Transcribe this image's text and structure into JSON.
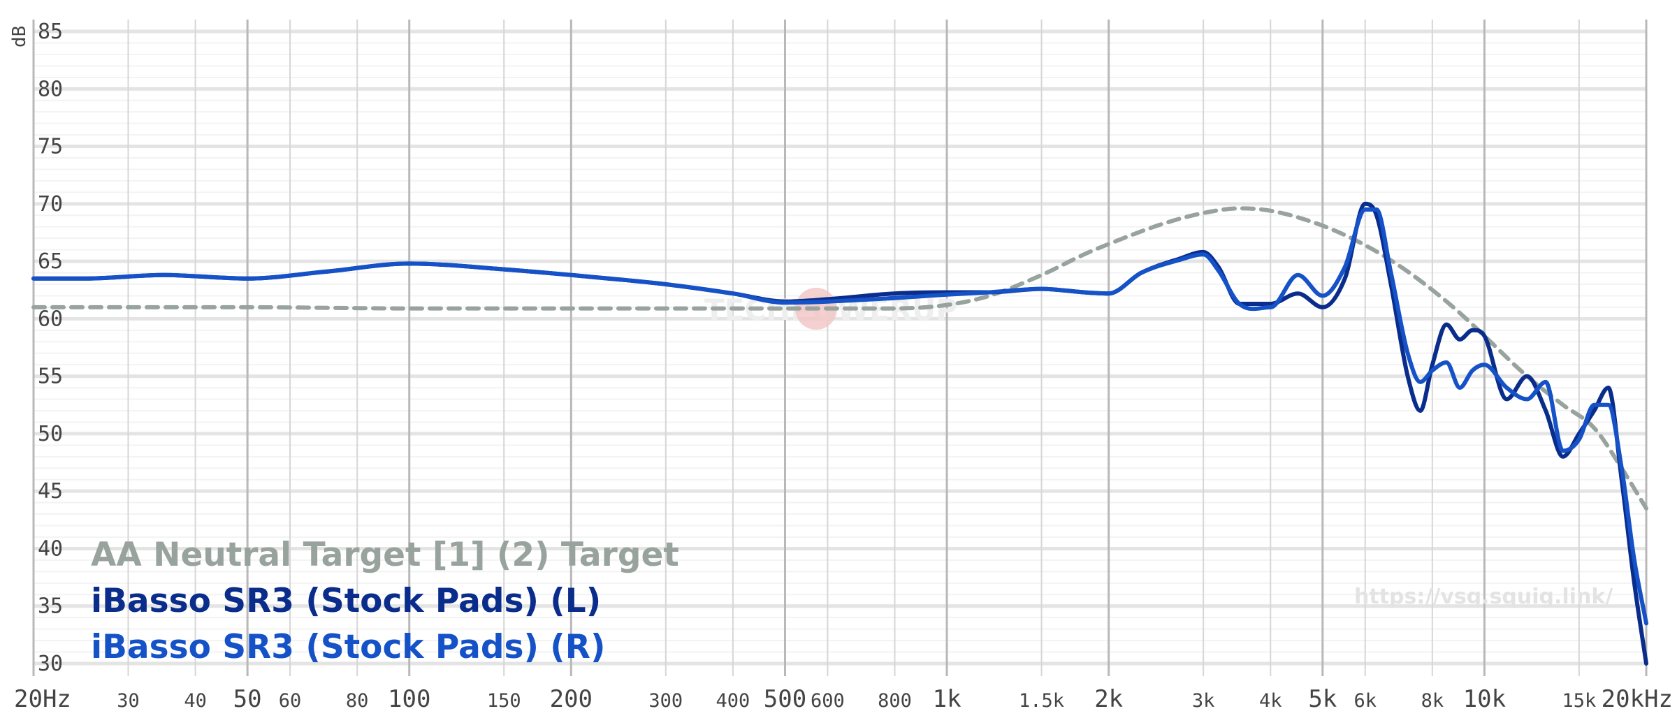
{
  "chart_data": {
    "type": "line",
    "x_scale": "log",
    "xlim": [
      20,
      20000
    ],
    "ylim": [
      30,
      85
    ],
    "y_unit": "dB",
    "yticks": [
      "85",
      "80",
      "75",
      "70",
      "65",
      "60",
      "55",
      "50",
      "45",
      "40",
      "35",
      "30"
    ],
    "xticks": [
      "20Hz",
      "30",
      "40",
      "50",
      "60",
      "80",
      "100",
      "150",
      "200",
      "300",
      "400",
      "500",
      "600",
      "800",
      "1k",
      "1.5k",
      "2k",
      "3k",
      "4k",
      "5k",
      "6k",
      "8k",
      "10k",
      "15k",
      "20kHz"
    ],
    "series": [
      {
        "name": "AA Neutral Target [1] (2) Target",
        "color": "#98a39e",
        "dashed": true,
        "x": [
          20,
          30,
          50,
          100,
          200,
          300,
          500,
          800,
          1000,
          1200,
          1500,
          1800,
          2000,
          2500,
          3000,
          3500,
          4000,
          5000,
          6000,
          7000,
          8000,
          9000,
          10000,
          12000,
          14000,
          16000,
          18000,
          20000
        ],
        "y": [
          61,
          61,
          61,
          60.9,
          60.9,
          60.9,
          60.9,
          60.9,
          61.2,
          62,
          63.8,
          65.6,
          66.5,
          68.2,
          69.2,
          69.6,
          69.4,
          68.1,
          66.4,
          64.5,
          62.5,
          60.5,
          58.5,
          55,
          52.5,
          50.5,
          47,
          43.5
        ]
      },
      {
        "name": "iBasso SR3 (Stock Pads) (L)",
        "color": "#0a2d8c",
        "dashed": false,
        "x": [
          20,
          25,
          35,
          50,
          70,
          100,
          150,
          200,
          300,
          400,
          500,
          600,
          800,
          1000,
          1200,
          1500,
          1800,
          2000,
          2300,
          2700,
          3000,
          3200,
          3500,
          4000,
          4500,
          5000,
          5500,
          6000,
          6300,
          6700,
          7200,
          7600,
          8000,
          8500,
          9000,
          9500,
          10000,
          11000,
          12000,
          13000,
          14000,
          15000,
          16000,
          17000,
          18000,
          19000,
          20000
        ],
        "y": [
          63.5,
          63.5,
          63.8,
          63.5,
          64.1,
          64.8,
          64.3,
          63.8,
          63,
          62.2,
          61.5,
          61.7,
          62.2,
          62.3,
          62.3,
          62.6,
          62.3,
          62.2,
          64,
          65.2,
          65.8,
          64.5,
          61.3,
          61.3,
          62.2,
          61,
          63.5,
          70,
          69,
          63,
          55,
          52,
          56,
          59.5,
          58.2,
          59,
          58.5,
          53,
          55,
          52,
          48,
          50,
          52,
          54,
          46,
          37,
          30
        ]
      },
      {
        "name": "iBasso SR3 (Stock Pads) (R)",
        "color": "#1551c7",
        "dashed": false,
        "x": [
          20,
          25,
          35,
          50,
          70,
          100,
          150,
          200,
          300,
          400,
          500,
          600,
          800,
          1000,
          1200,
          1500,
          1800,
          2000,
          2300,
          2700,
          3000,
          3200,
          3500,
          4000,
          4500,
          5000,
          5500,
          6000,
          6300,
          6700,
          7200,
          7600,
          8000,
          8500,
          9000,
          9500,
          10000,
          11000,
          12000,
          13000,
          14000,
          15000,
          16000,
          17000,
          18000,
          19000,
          20000
        ],
        "y": [
          63.5,
          63.5,
          63.8,
          63.5,
          64.1,
          64.8,
          64.3,
          63.8,
          63,
          62.2,
          61.4,
          61.5,
          61.8,
          62.1,
          62.3,
          62.6,
          62.3,
          62.2,
          64,
          65.1,
          65.6,
          64.2,
          61.3,
          61,
          63.8,
          62,
          64.5,
          69.5,
          69.5,
          64,
          57,
          54.5,
          55.5,
          56.2,
          54,
          55.5,
          56,
          54,
          53,
          54.5,
          48.5,
          49.5,
          52.5,
          52.5,
          47,
          39,
          33.5
        ]
      }
    ]
  },
  "legend": {
    "target": "AA Neutral Target [1] (2) Target",
    "left": "iBasso SR3 (Stock Pads) (L)",
    "right": "iBasso SR3 (Stock Pads) (R)"
  },
  "watermark": "https://vsg.squig.link/",
  "logo_text": "TECHPOWERUP"
}
